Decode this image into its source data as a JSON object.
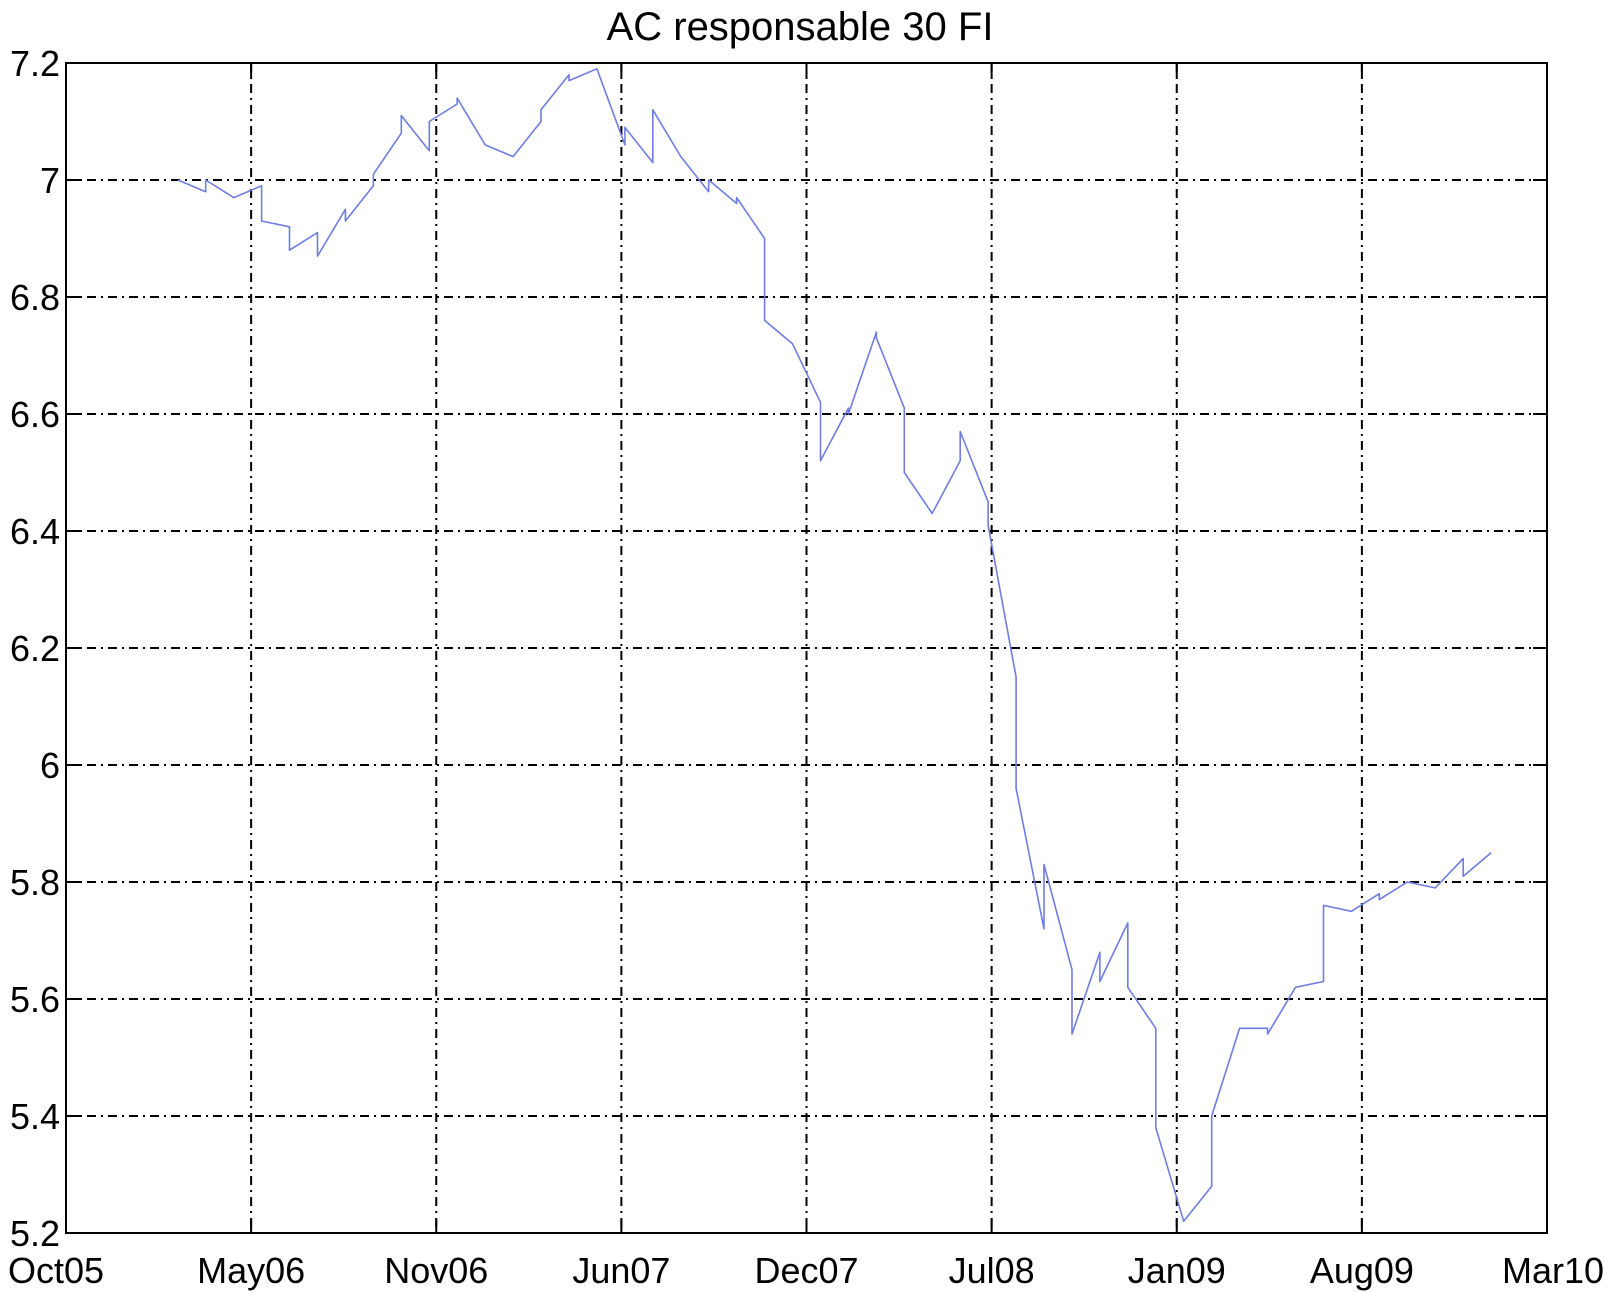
{
  "chart_data": {
    "type": "line",
    "title": "AC responsable 30 FI",
    "xlabel": "",
    "ylabel": "",
    "grid": true,
    "xlim": [
      "2005-10",
      "2010-03"
    ],
    "ylim": [
      5.2,
      7.2
    ],
    "x_ticks": [
      "Oct05",
      "May06",
      "Nov06",
      "Jun07",
      "Dec07",
      "Jul08",
      "Jan09",
      "Aug09",
      "Mar10"
    ],
    "y_ticks": [
      "5.2",
      "5.4",
      "5.6",
      "5.8",
      "6",
      "6.2",
      "6.4",
      "6.6",
      "6.8",
      "7",
      "7.2"
    ],
    "line_color": "#6f7de0",
    "series": [
      {
        "x": [
          "2006-02",
          "2006-03",
          "2006-03",
          "2006-04",
          "2006-05",
          "2006-05",
          "2006-06",
          "2006-06",
          "2006-07",
          "2006-07",
          "2006-08",
          "2006-08",
          "2006-09",
          "2006-09",
          "2006-10",
          "2006-10",
          "2006-11",
          "2006-11",
          "2006-12",
          "2006-12",
          "2007-01",
          "2007-02",
          "2007-03",
          "2007-03",
          "2007-04",
          "2007-04",
          "2007-05",
          "2007-06",
          "2007-06",
          "2007-07",
          "2007-07",
          "2007-08",
          "2007-09",
          "2007-09",
          "2007-10",
          "2007-10",
          "2007-11",
          "2007-11",
          "2007-12",
          "2008-01",
          "2008-01",
          "2008-02",
          "2008-02",
          "2008-03",
          "2008-03",
          "2008-04",
          "2008-04",
          "2008-05",
          "2008-06",
          "2008-06",
          "2008-07",
          "2008-07",
          "2008-08",
          "2008-08",
          "2008-09",
          "2008-09",
          "2008-10",
          "2008-10",
          "2008-11",
          "2008-11",
          "2008-12",
          "2008-12",
          "2009-01",
          "2009-01",
          "2009-02",
          "2009-03",
          "2009-03",
          "2009-04",
          "2009-05",
          "2009-05",
          "2009-06",
          "2009-07",
          "2009-07",
          "2009-08",
          "2009-09",
          "2009-09",
          "2009-10",
          "2009-11",
          "2009-12",
          "2009-12",
          "2010-01"
        ],
        "y": [
          7.0,
          6.98,
          7.0,
          6.97,
          6.99,
          6.93,
          6.92,
          6.88,
          6.91,
          6.87,
          6.95,
          6.93,
          6.99,
          7.01,
          7.08,
          7.11,
          7.05,
          7.1,
          7.13,
          7.14,
          7.06,
          7.04,
          7.1,
          7.12,
          7.18,
          7.17,
          7.19,
          7.06,
          7.09,
          7.03,
          7.12,
          7.04,
          6.98,
          7.0,
          6.96,
          6.97,
          6.9,
          6.76,
          6.72,
          6.62,
          6.52,
          6.61,
          6.6,
          6.74,
          6.73,
          6.61,
          6.5,
          6.43,
          6.52,
          6.57,
          6.45,
          6.41,
          6.15,
          5.96,
          5.72,
          5.83,
          5.65,
          5.54,
          5.68,
          5.63,
          5.73,
          5.62,
          5.55,
          5.38,
          5.22,
          5.28,
          5.4,
          5.55,
          5.55,
          5.54,
          5.62,
          5.63,
          5.76,
          5.75,
          5.78,
          5.77,
          5.8,
          5.79,
          5.84,
          5.81,
          5.85
        ]
      }
    ]
  }
}
